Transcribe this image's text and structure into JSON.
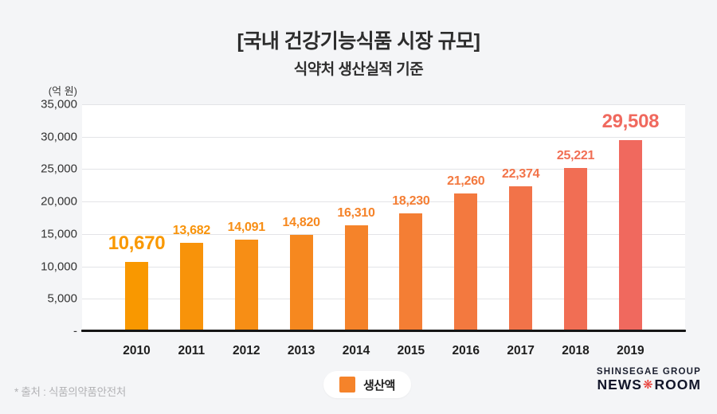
{
  "header": {
    "title": "[국내 건강기능식품 시장 규모]",
    "subtitle": "식약처 생산실적 기준"
  },
  "chart_data": {
    "type": "bar",
    "title": "[국내 건강기능식품 시장 규모]",
    "subtitle": "식약처 생산실적 기준",
    "unit_label": "(억 원)",
    "categories": [
      "2010",
      "2011",
      "2012",
      "2013",
      "2014",
      "2015",
      "2016",
      "2017",
      "2018",
      "2019"
    ],
    "series": [
      {
        "name": "생산액",
        "values": [
          10670,
          13682,
          14091,
          14820,
          16310,
          18230,
          21260,
          22374,
          25221,
          29508
        ],
        "value_labels": [
          "10,670",
          "13,682",
          "14,091",
          "14,820",
          "16,310",
          "18,230",
          "21,260",
          "22,374",
          "25,221",
          "29,508"
        ]
      }
    ],
    "ylabel": "(억 원)",
    "ylim": [
      0,
      35000
    ],
    "ytick_interval": 5000,
    "ytick_labels": [
      "35,000",
      "30,000",
      "25,000",
      "20,000",
      "15,000",
      "10,000",
      "5,000",
      "-"
    ],
    "grid": true,
    "legend_position": "bottom",
    "bar_colors": [
      "#F99800",
      "#F8930A",
      "#F78E15",
      "#F6881F",
      "#F5832A",
      "#F47E34",
      "#F3793F",
      "#F27349",
      "#F16E54",
      "#F0695E"
    ],
    "highlight_indices": [
      0,
      9
    ]
  },
  "legend": {
    "label": "생산액",
    "swatch_color": "#F5832A"
  },
  "footer": {
    "source": "* 출처 : 식품의약품안전처",
    "logo_line1": "SHINSEGAE GROUP",
    "logo_news": "NEWS",
    "logo_flower": "❋",
    "logo_room": "ROOM",
    "logo_flower_color": "#E8352E"
  },
  "colors": {
    "background": "#F4F5F7",
    "plot_background": "#FFFFFF",
    "gridline": "#E3E4E7",
    "baseline": "#161616",
    "title_text": "#2D2D2D",
    "axis_text": "#333333",
    "source_text": "#B2B2B5"
  }
}
